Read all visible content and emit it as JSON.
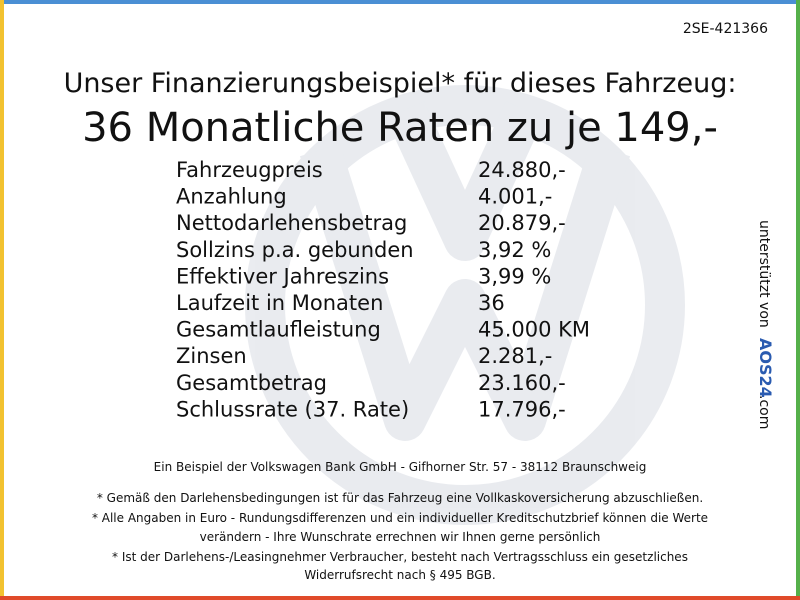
{
  "header": {
    "id": "2SE-421366",
    "title": "Unser Finanzierungsbeispiel* für dieses Fahrzeug:",
    "headline": "36 Monatliche Raten zu je 149,-"
  },
  "table": {
    "rows": [
      [
        "Fahrzeugpreis",
        "24.880,-"
      ],
      [
        "Anzahlung",
        "4.001,-"
      ],
      [
        "Nettodarlehensbetrag",
        "20.879,-"
      ],
      [
        "Sollzins p.a. gebunden",
        "3,92 %"
      ],
      [
        "Effektiver Jahreszins",
        "3,99 %"
      ],
      [
        "Laufzeit in Monaten",
        "36"
      ],
      [
        "Gesamtlaufleistung",
        "45.000 KM"
      ],
      [
        "Zinsen",
        "2.281,-"
      ],
      [
        "Gesamtbetrag",
        "23.160,-"
      ],
      [
        "Schlussrate (37. Rate)",
        "17.796,-"
      ]
    ]
  },
  "footer": {
    "bank": "Ein Beispiel der Volkswagen Bank GmbH - Gifhorner Str. 57 - 38112 Braunschweig",
    "notes": [
      "* Gemäß den Darlehensbedingungen ist für das Fahrzeug eine Vollkaskoversicherung abzuschließen.",
      "* Alle Angaben in Euro - Rundungsdifferenzen und ein individueller Kreditschutzbrief können die Werte",
      "verändern - Ihre Wunschrate errechnen wir Ihnen gerne persönlich",
      "* Ist der Darlehens-/Leasingnehmer Verbraucher, besteht nach Vertragsschluss ein gesetzliches",
      "Widerrufsrecht nach § 495 BGB."
    ]
  },
  "side": {
    "text": "unterstützt von",
    "logo": "AOS24",
    "domain": ".com"
  }
}
